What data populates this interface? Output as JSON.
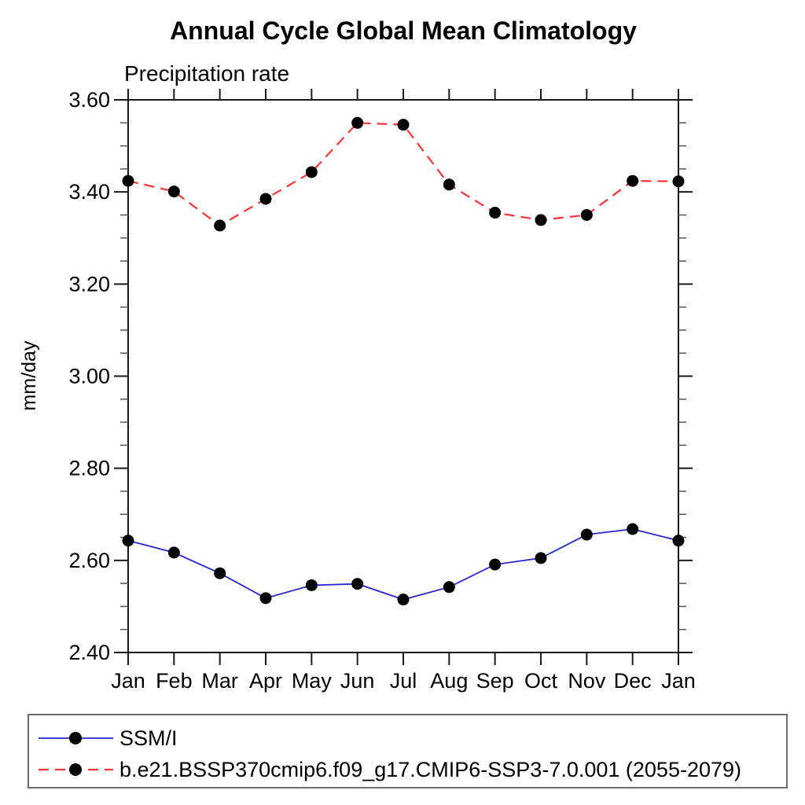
{
  "page": {
    "background": "#ffffff"
  },
  "chart_data": {
    "type": "line",
    "title": "Annual Cycle Global Mean Climatology",
    "subtitle": "Precipitation rate",
    "ylabel": "mm/day",
    "xlabel": "",
    "categories": [
      "Jan",
      "Feb",
      "Mar",
      "Apr",
      "May",
      "Jun",
      "Jul",
      "Aug",
      "Sep",
      "Oct",
      "Nov",
      "Dec",
      "Jan"
    ],
    "ylim": [
      2.4,
      3.6
    ],
    "ytick_labels": [
      "2.40",
      "2.60",
      "2.80",
      "3.00",
      "3.20",
      "3.40",
      "3.60"
    ],
    "ytick_major_interval": 0.2,
    "ytick_minor_interval": 0.05,
    "grid": false,
    "legend_position": "bottom-left-box",
    "axis_color": "#1a1a1a",
    "minor_tick_color": "#555555",
    "marker_color": "#000000",
    "series": [
      {
        "name": "SSM/I",
        "color": "#2626d4",
        "line_style": "solid",
        "line_width": 1.8,
        "marker": "filled-circle",
        "values": [
          2.643,
          2.617,
          2.572,
          2.518,
          2.546,
          2.549,
          2.515,
          2.542,
          2.591,
          2.605,
          2.656,
          2.668,
          2.643
        ]
      },
      {
        "name": "b.e21.BSSP370cmip6.f09_g17.CMIP6-SSP3-7.0.001 (2055-2079)",
        "color": "#ff3232",
        "line_style": "dashed",
        "line_width": 2.2,
        "marker": "filled-circle",
        "values": [
          3.424,
          3.401,
          3.327,
          3.385,
          3.443,
          3.55,
          3.546,
          3.416,
          3.355,
          3.339,
          3.35,
          3.424,
          3.423
        ]
      }
    ]
  }
}
